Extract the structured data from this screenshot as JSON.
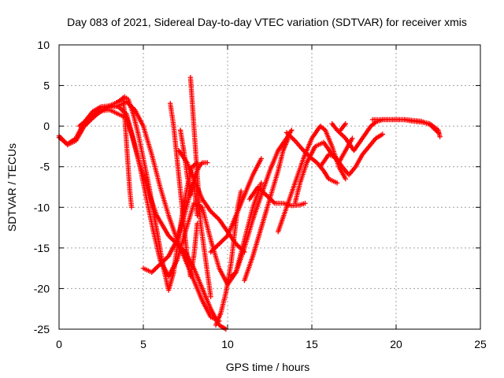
{
  "chart_data": {
    "type": "scatter",
    "title": "Day 083 of 2021, Sidereal Day-to-day VTEC variation (SDTVAR) for receiver xmis",
    "xlabel": "GPS time / hours",
    "ylabel": "SDTVAR / TECUs",
    "xlim": [
      0,
      25
    ],
    "ylim": [
      -25,
      10
    ],
    "xticks": [
      0,
      5,
      10,
      15,
      20,
      25
    ],
    "yticks": [
      -25,
      -20,
      -15,
      -10,
      -5,
      0,
      5,
      10
    ],
    "grid": true,
    "marker": "+",
    "color": "#ff0000",
    "series": [
      {
        "values": [
          [
            0.0,
            -1.2
          ],
          [
            0.5,
            -2.3
          ],
          [
            1.0,
            -1.8
          ],
          [
            1.5,
            0.0
          ],
          [
            2.0,
            1.0
          ],
          [
            2.5,
            1.9
          ],
          [
            3.0,
            2.0
          ],
          [
            3.5,
            1.5
          ],
          [
            4.0,
            1.0
          ],
          [
            4.3,
            -1.0
          ],
          [
            4.7,
            -4.0
          ],
          [
            5.2,
            -7.5
          ],
          [
            5.8,
            -11.0
          ],
          [
            6.5,
            -13.5
          ],
          [
            7.0,
            -14.5
          ],
          [
            7.5,
            -15.5
          ],
          [
            8.0,
            -17.5
          ],
          [
            8.5,
            -20.0
          ],
          [
            9.0,
            -22.5
          ],
          [
            9.5,
            -24.5
          ],
          [
            9.9,
            -25.0
          ]
        ]
      },
      {
        "values": [
          [
            0.0,
            -1.4
          ],
          [
            0.5,
            -2.2
          ],
          [
            1.0,
            -1.5
          ],
          [
            1.5,
            0.5
          ],
          [
            2.0,
            1.8
          ],
          [
            2.5,
            2.4
          ],
          [
            3.0,
            2.5
          ],
          [
            3.5,
            3.0
          ],
          [
            3.9,
            3.6
          ],
          [
            4.1,
            3.3
          ],
          [
            4.4,
            1.5
          ],
          [
            4.7,
            -1.0
          ],
          [
            5.0,
            -4.0
          ],
          [
            5.3,
            -7.0
          ],
          [
            5.6,
            -10.5
          ],
          [
            5.9,
            -14.0
          ],
          [
            6.2,
            -17.5
          ],
          [
            6.5,
            -20.2
          ],
          [
            6.8,
            -18.0
          ],
          [
            7.0,
            -15.0
          ],
          [
            7.3,
            -11.0
          ],
          [
            7.6,
            -7.5
          ],
          [
            7.9,
            -5.0
          ],
          [
            8.2,
            -4.5
          ]
        ]
      },
      {
        "values": [
          [
            1.2,
            0.0
          ],
          [
            1.8,
            1.0
          ],
          [
            2.5,
            1.8
          ],
          [
            3.0,
            2.5
          ],
          [
            3.5,
            2.4
          ],
          [
            4.0,
            1.5
          ],
          [
            4.4,
            -1.5
          ],
          [
            4.8,
            -5.0
          ],
          [
            5.2,
            -9.0
          ],
          [
            5.6,
            -13.0
          ],
          [
            6.0,
            -16.5
          ],
          [
            6.5,
            -18.5
          ],
          [
            7.0,
            -16.5
          ],
          [
            7.5,
            -13.0
          ],
          [
            8.0,
            -9.5
          ],
          [
            8.5,
            -10.0
          ],
          [
            9.0,
            -14.0
          ],
          [
            9.5,
            -17.5
          ],
          [
            10.0,
            -19.5
          ],
          [
            10.5,
            -18.0
          ],
          [
            11.0,
            -14.0
          ],
          [
            11.5,
            -10.0
          ],
          [
            12.0,
            -7.0
          ]
        ]
      },
      {
        "values": [
          [
            2.0,
            1.5
          ],
          [
            2.5,
            2.0
          ],
          [
            3.0,
            2.3
          ],
          [
            3.5,
            2.5
          ],
          [
            4.0,
            3.0
          ],
          [
            4.5,
            2.0
          ],
          [
            5.0,
            0.0
          ],
          [
            5.5,
            -3.5
          ],
          [
            6.0,
            -7.5
          ],
          [
            6.5,
            -11.0
          ],
          [
            7.0,
            -14.0
          ],
          [
            7.5,
            -16.5
          ],
          [
            8.0,
            -19.0
          ],
          [
            8.5,
            -21.5
          ],
          [
            9.0,
            -23.5
          ],
          [
            9.5,
            -24.0
          ]
        ]
      },
      {
        "values": [
          [
            3.8,
            3.5
          ],
          [
            3.9,
            1.0
          ],
          [
            4.0,
            -2.0
          ],
          [
            4.1,
            -5.0
          ],
          [
            4.2,
            -8.0
          ],
          [
            4.3,
            -10.0
          ]
        ]
      },
      {
        "values": [
          [
            5.0,
            -17.5
          ],
          [
            5.5,
            -18.0
          ],
          [
            6.0,
            -17.0
          ],
          [
            6.5,
            -16.0
          ],
          [
            7.0,
            -14.0
          ],
          [
            7.5,
            -10.5
          ],
          [
            8.0,
            -6.5
          ],
          [
            8.3,
            -5.0
          ],
          [
            8.5,
            -4.5
          ],
          [
            8.8,
            -4.5
          ]
        ]
      },
      {
        "values": [
          [
            6.6,
            2.8
          ],
          [
            6.8,
            0.0
          ],
          [
            7.0,
            -4.0
          ],
          [
            7.2,
            -8.0
          ],
          [
            7.4,
            -12.0
          ],
          [
            7.6,
            -16.0
          ],
          [
            7.8,
            -18.5
          ],
          [
            8.0,
            -16.0
          ],
          [
            8.2,
            -12.0
          ]
        ]
      },
      {
        "values": [
          [
            7.1,
            -3.0
          ],
          [
            7.6,
            -4.5
          ],
          [
            8.0,
            -6.5
          ],
          [
            8.5,
            -9.0
          ],
          [
            9.0,
            -10.5
          ],
          [
            9.5,
            -11.5
          ],
          [
            10.0,
            -13.0
          ],
          [
            10.5,
            -14.5
          ],
          [
            11.0,
            -15.5
          ]
        ]
      },
      {
        "values": [
          [
            7.2,
            -0.5
          ],
          [
            7.4,
            -3.0
          ],
          [
            7.6,
            -6.0
          ],
          [
            7.8,
            -8.5
          ],
          [
            8.0,
            -7.0
          ],
          [
            8.2,
            -11.0
          ]
        ]
      },
      {
        "values": [
          [
            7.8,
            6.0
          ],
          [
            7.9,
            3.0
          ],
          [
            8.0,
            0.0
          ],
          [
            8.1,
            -3.0
          ],
          [
            8.2,
            -6.0
          ],
          [
            8.3,
            -9.0
          ],
          [
            8.4,
            -12.0
          ],
          [
            8.6,
            -15.0
          ],
          [
            8.8,
            -18.0
          ],
          [
            9.0,
            -21.0
          ]
        ]
      },
      {
        "values": [
          [
            9.3,
            -24.5
          ],
          [
            9.6,
            -23.0
          ],
          [
            9.9,
            -20.5
          ],
          [
            10.2,
            -17.0
          ],
          [
            10.4,
            -13.5
          ],
          [
            10.6,
            -10.0
          ],
          [
            10.8,
            -8.0
          ]
        ]
      },
      {
        "values": [
          [
            9.0,
            -15.5
          ],
          [
            9.5,
            -14.5
          ],
          [
            10.0,
            -13.5
          ],
          [
            10.5,
            -11.0
          ],
          [
            11.0,
            -8.5
          ],
          [
            11.5,
            -6.0
          ],
          [
            12.0,
            -4.0
          ]
        ]
      },
      {
        "values": [
          [
            10.2,
            -18.5
          ],
          [
            10.5,
            -18.0
          ],
          [
            11.0,
            -15.0
          ],
          [
            11.5,
            -11.5
          ],
          [
            12.0,
            -8.5
          ],
          [
            12.5,
            -5.5
          ],
          [
            13.0,
            -3.0
          ],
          [
            13.5,
            -1.5
          ],
          [
            13.8,
            -0.5
          ]
        ]
      },
      {
        "values": [
          [
            11.0,
            -19.0
          ],
          [
            11.5,
            -16.0
          ],
          [
            12.0,
            -12.5
          ],
          [
            12.5,
            -9.0
          ],
          [
            13.0,
            -5.5
          ],
          [
            13.3,
            -3.0
          ],
          [
            13.6,
            -1.5
          ]
        ]
      },
      {
        "values": [
          [
            11.3,
            -9.0
          ],
          [
            11.8,
            -7.5
          ],
          [
            12.3,
            -8.5
          ],
          [
            12.8,
            -9.5
          ],
          [
            13.3,
            -9.5
          ],
          [
            13.8,
            -9.8
          ],
          [
            14.3,
            -9.7
          ],
          [
            14.6,
            -9.5
          ]
        ]
      },
      {
        "values": [
          [
            13.0,
            -13.0
          ],
          [
            13.5,
            -10.0
          ],
          [
            14.0,
            -7.0
          ],
          [
            14.5,
            -4.0
          ],
          [
            15.0,
            -1.5
          ],
          [
            15.5,
            0.0
          ],
          [
            15.8,
            -0.5
          ],
          [
            16.2,
            -2.5
          ],
          [
            16.6,
            -5.0
          ],
          [
            17.0,
            -6.5
          ]
        ]
      },
      {
        "values": [
          [
            14.0,
            -9.5
          ],
          [
            14.3,
            -7.0
          ],
          [
            14.7,
            -4.5
          ],
          [
            15.2,
            -2.5
          ],
          [
            15.7,
            -2.0
          ],
          [
            16.2,
            -3.5
          ],
          [
            16.6,
            -4.5
          ],
          [
            17.0,
            -3.0
          ],
          [
            17.4,
            -1.5
          ]
        ]
      },
      {
        "values": [
          [
            13.5,
            -0.8
          ],
          [
            14.0,
            -1.8
          ],
          [
            14.5,
            -3.0
          ],
          [
            15.0,
            -4.0
          ],
          [
            15.3,
            -4.5
          ],
          [
            15.7,
            -5.5
          ],
          [
            16.0,
            -6.5
          ],
          [
            16.5,
            -7.0
          ]
        ]
      },
      {
        "values": [
          [
            15.5,
            -5.0
          ],
          [
            16.0,
            -3.5
          ],
          [
            16.4,
            -3.8
          ],
          [
            16.8,
            -5.0
          ],
          [
            17.2,
            -6.0
          ],
          [
            17.6,
            -5.0
          ],
          [
            18.0,
            -3.5
          ],
          [
            18.4,
            -2.5
          ],
          [
            18.8,
            -1.5
          ],
          [
            19.2,
            -1.0
          ]
        ]
      },
      {
        "values": [
          [
            16.2,
            0.3
          ],
          [
            16.5,
            -0.5
          ],
          [
            17.0,
            -1.5
          ],
          [
            17.5,
            -3.0
          ],
          [
            18.0,
            -1.5
          ],
          [
            18.5,
            0.0
          ],
          [
            18.8,
            0.5
          ],
          [
            19.2,
            0.8
          ],
          [
            19.6,
            0.8
          ],
          [
            20.0,
            0.8
          ],
          [
            20.5,
            0.8
          ],
          [
            21.0,
            0.6
          ],
          [
            21.5,
            0.5
          ],
          [
            22.0,
            0.3
          ],
          [
            22.5,
            -0.5
          ],
          [
            22.6,
            -1.3
          ]
        ]
      },
      {
        "values": [
          [
            16.7,
            -0.5
          ],
          [
            17.0,
            0.3
          ]
        ]
      },
      {
        "values": [
          [
            18.6,
            0.8
          ],
          [
            19.0,
            0.8
          ],
          [
            19.5,
            0.8
          ],
          [
            20.0,
            0.8
          ],
          [
            20.5,
            0.8
          ],
          [
            21.0,
            0.7
          ],
          [
            21.5,
            0.6
          ],
          [
            22.0,
            0.2
          ],
          [
            22.5,
            -0.8
          ]
        ]
      }
    ]
  }
}
